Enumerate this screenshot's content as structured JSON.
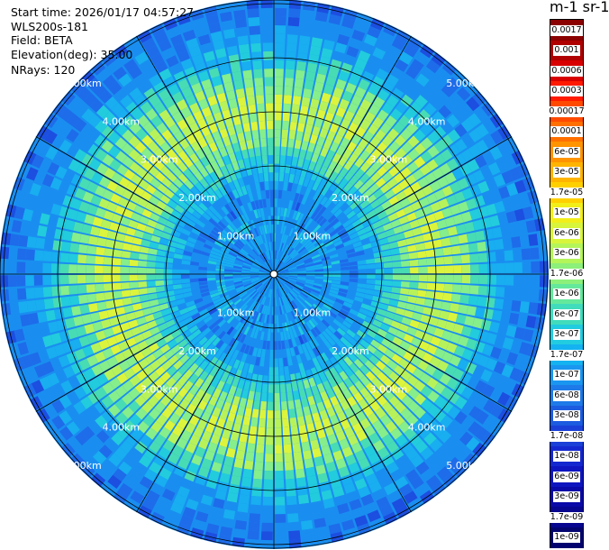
{
  "header": {
    "start_time": "Start time: 2026/01/17 04:57:27",
    "instrument": "WLS200s-181",
    "field": "Field: BETA",
    "elevation": "Elevation(deg): 35.00",
    "nrays": "NRays: 120"
  },
  "colorbar": {
    "unit_label": "m-1 sr-1",
    "ticks": [
      "0.0017",
      "0.001",
      "0.0006",
      "0.0003",
      "0.00017",
      "0.0001",
      "6e-05",
      "3e-05",
      "1.7e-05",
      "1e-05",
      "6e-06",
      "3e-06",
      "1.7e-06",
      "1e-06",
      "6e-07",
      "3e-07",
      "1.7e-07",
      "1e-07",
      "6e-08",
      "3e-08",
      "1.7e-08",
      "1e-08",
      "6e-09",
      "3e-09",
      "1.7e-09",
      "1e-09"
    ],
    "colors": [
      "#8b0000",
      "#b00000",
      "#d80000",
      "#ff1a00",
      "#ff4a00",
      "#ff7000",
      "#ff9400",
      "#ffb400",
      "#ffd000",
      "#f2ee1a",
      "#d8f53c",
      "#b4f55a",
      "#8cf07a",
      "#64e89c",
      "#40dcbc",
      "#22cce0",
      "#14b2f0",
      "#1a96f0",
      "#1e7ae8",
      "#1c5ce0",
      "#1a40d8",
      "#1428d0",
      "#0e16c0",
      "#0a0aa8",
      "#060690",
      "#030370"
    ]
  },
  "range_rings": {
    "labels": [
      "1.00km",
      "2.00km",
      "3.00km",
      "4.00km",
      "5.00km"
    ]
  }
}
